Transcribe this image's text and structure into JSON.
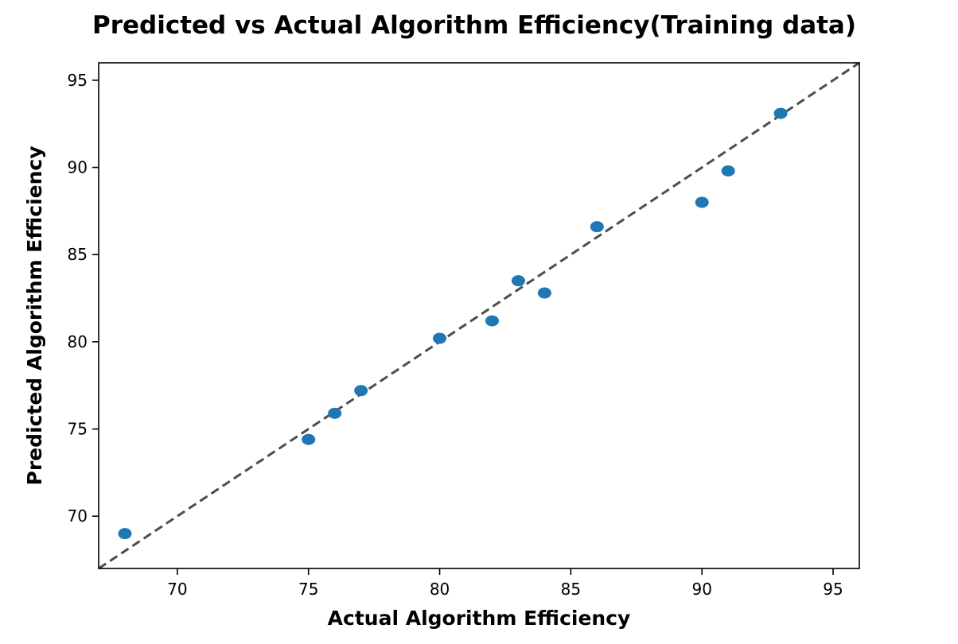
{
  "chart_data": {
    "type": "scatter",
    "title": "Predicted vs Actual Algorithm Efficiency(Training data)",
    "xlabel": "Actual Algorithm Efficiency",
    "ylabel": "Predicted Algorithm Efficiency",
    "xlim": [
      67,
      96
    ],
    "ylim": [
      67,
      96
    ],
    "xticks": [
      70,
      75,
      80,
      85,
      90,
      95
    ],
    "yticks": [
      70,
      75,
      80,
      85,
      90,
      95
    ],
    "grid": false,
    "reference_line": {
      "style": "dashed",
      "color": "#4d4d4d",
      "from": [
        67,
        67
      ],
      "to": [
        96,
        96
      ]
    },
    "series": [
      {
        "color": "#1f77b4",
        "points": [
          {
            "x": 68,
            "y": 69.0
          },
          {
            "x": 75,
            "y": 74.4
          },
          {
            "x": 76,
            "y": 75.9
          },
          {
            "x": 77,
            "y": 77.2
          },
          {
            "x": 80,
            "y": 80.2
          },
          {
            "x": 82,
            "y": 81.2
          },
          {
            "x": 83,
            "y": 83.5
          },
          {
            "x": 84,
            "y": 82.8
          },
          {
            "x": 86,
            "y": 86.6
          },
          {
            "x": 90,
            "y": 88.0
          },
          {
            "x": 91,
            "y": 89.8
          },
          {
            "x": 93,
            "y": 93.1
          }
        ]
      }
    ]
  }
}
